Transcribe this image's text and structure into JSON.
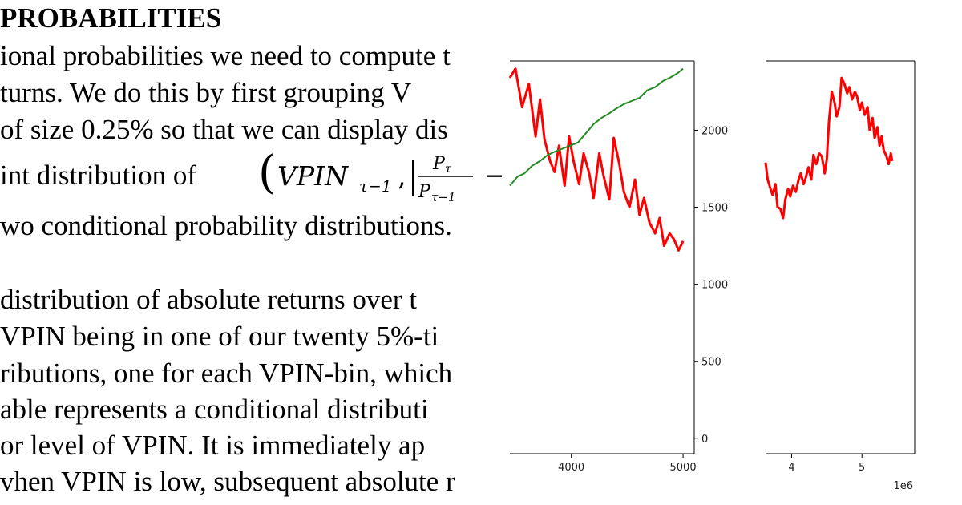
{
  "document": {
    "heading": "PROBABILITIES",
    "lines": [
      "ional probabilities we need to compute t",
      "turns. We do this by first grouping V",
      "of size 0.25% so that we can display dis",
      "int distribution of",
      "wo conditional probability distributions.",
      "distribution of absolute returns over t",
      "VPIN being in one of our twenty 5%-ti",
      "ributions, one for each VPIN-bin, which",
      "able represents a conditional distributi",
      "or level of VPIN. It is immediately ap",
      "vhen VPIN is low, subsequent absolute r"
    ],
    "math": {
      "open": "(",
      "term": "VPIN",
      "sub": "τ−1",
      "comma": ",",
      "frac_num": "P",
      "frac_num_sub": "τ",
      "frac_den": "P",
      "frac_den_sub": "τ−1",
      "trail": "−"
    }
  },
  "chart_data": [
    {
      "type": "line",
      "x_ticks": [
        4000,
        5000
      ],
      "y_ticks": [
        0,
        500,
        1000,
        1500,
        2000
      ],
      "xlim": [
        3450,
        5100
      ],
      "ylim": [
        -100,
        2450
      ],
      "series": [
        {
          "color": "#ff0000",
          "x": [
            3450,
            3500,
            3560,
            3620,
            3680,
            3720,
            3760,
            3810,
            3850,
            3890,
            3940,
            3980,
            4020,
            4070,
            4110,
            4160,
            4200,
            4250,
            4290,
            4340,
            4380,
            4430,
            4470,
            4520,
            4570,
            4610,
            4650,
            4700,
            4750,
            4790,
            4830,
            4880,
            4920,
            4960,
            5000
          ],
          "y": [
            2340,
            2400,
            2150,
            2300,
            1960,
            2200,
            1940,
            1800,
            1730,
            1900,
            1640,
            1960,
            1800,
            1650,
            1850,
            1720,
            1560,
            1850,
            1700,
            1550,
            1950,
            1780,
            1600,
            1500,
            1680,
            1450,
            1560,
            1400,
            1330,
            1430,
            1250,
            1330,
            1290,
            1220,
            1280
          ]
        },
        {
          "color": "#228b22",
          "x": [
            3450,
            3520,
            3580,
            3650,
            3720,
            3790,
            3850,
            3920,
            3990,
            4060,
            4130,
            4200,
            4270,
            4340,
            4400,
            4470,
            4540,
            4610,
            4680,
            4750,
            4820,
            4880,
            4950,
            5000
          ],
          "y": [
            1640,
            1700,
            1720,
            1770,
            1800,
            1840,
            1860,
            1880,
            1900,
            1920,
            1980,
            2040,
            2080,
            2110,
            2140,
            2170,
            2190,
            2210,
            2260,
            2280,
            2320,
            2340,
            2370,
            2400
          ]
        }
      ]
    },
    {
      "type": "line",
      "x_ticks": [
        4,
        5
      ],
      "x_tick_labels": [
        "4",
        "5"
      ],
      "x_offset_label": "1e6",
      "xlim": [
        3.63,
        5.75
      ],
      "ylim": [
        -100,
        2450
      ],
      "series": [
        {
          "color": "#ff0000",
          "x": [
            3.63,
            3.66,
            3.7,
            3.73,
            3.77,
            3.8,
            3.84,
            3.88,
            3.91,
            3.95,
            3.98,
            4.02,
            4.06,
            4.1,
            4.13,
            4.17,
            4.2,
            4.24,
            4.28,
            4.31,
            4.35,
            4.39,
            4.43,
            4.47,
            4.5,
            4.53,
            4.57,
            4.61,
            4.64,
            4.68,
            4.71,
            4.75,
            4.79,
            4.82,
            4.86,
            4.9,
            4.93,
            4.97,
            5.0,
            5.04,
            5.08,
            5.11,
            5.15,
            5.18,
            5.22,
            5.25,
            5.28,
            5.31,
            5.35,
            5.38,
            5.41,
            5.43
          ],
          "y": [
            1790,
            1680,
            1620,
            1580,
            1650,
            1500,
            1490,
            1430,
            1550,
            1620,
            1570,
            1640,
            1600,
            1680,
            1720,
            1650,
            1690,
            1760,
            1680,
            1840,
            1780,
            1850,
            1830,
            1720,
            1810,
            2050,
            2250,
            2180,
            2090,
            2150,
            2340,
            2300,
            2240,
            2280,
            2200,
            2250,
            2220,
            2130,
            2180,
            2100,
            2150,
            2000,
            2080,
            1950,
            2020,
            1900,
            1960,
            1870,
            1830,
            1780,
            1850,
            1800
          ]
        }
      ]
    }
  ]
}
